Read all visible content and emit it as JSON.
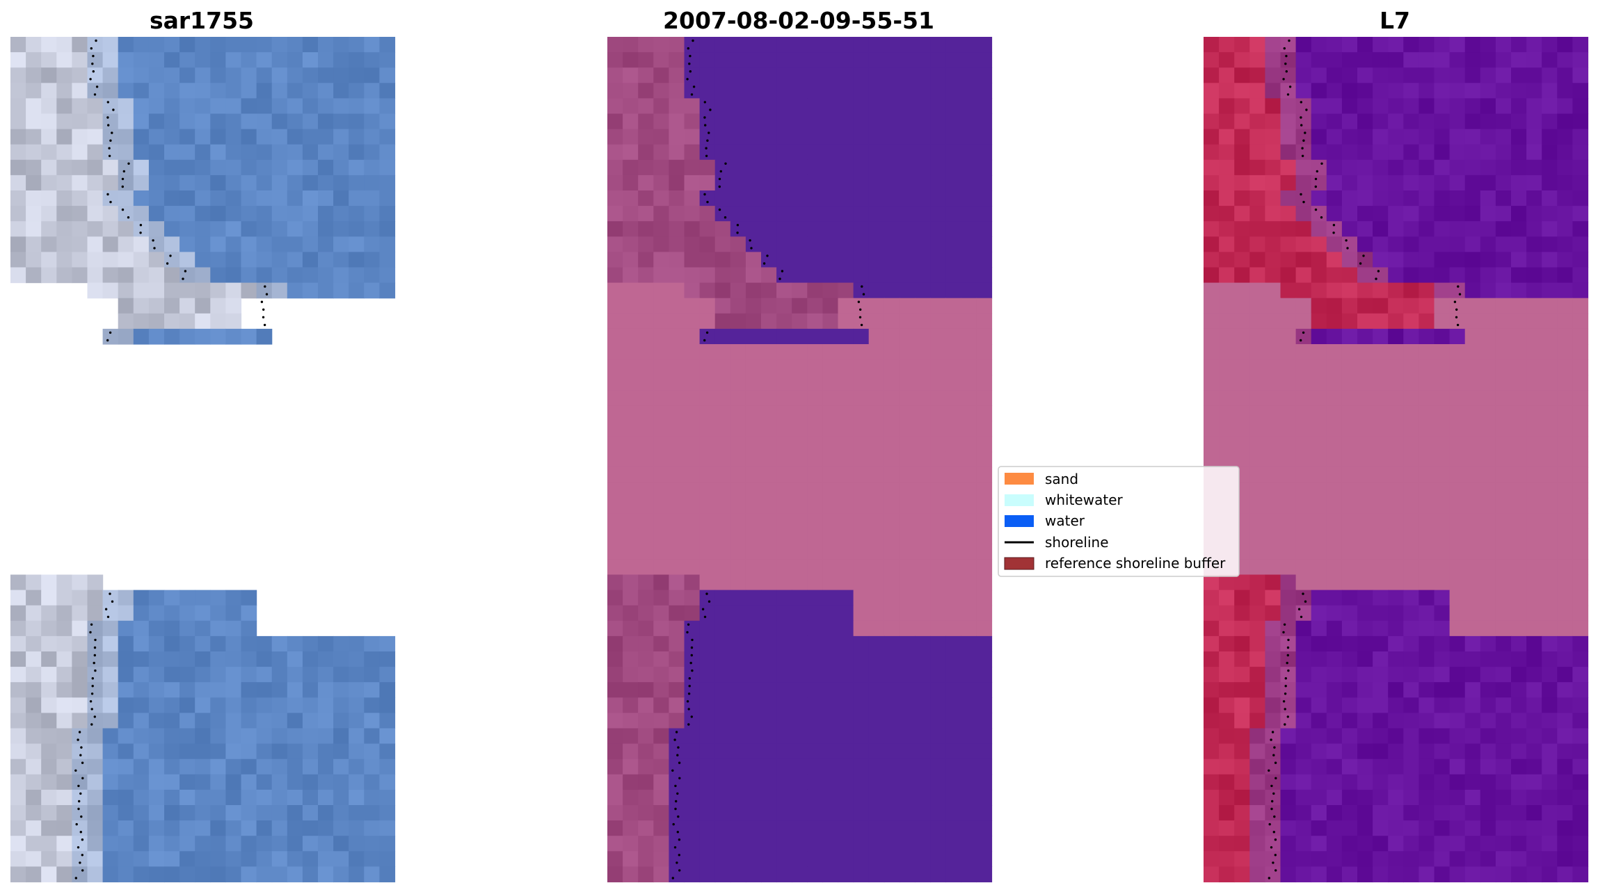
{
  "figure": {
    "panels": [
      {
        "id": "rgb",
        "title": "sar1755",
        "colormap": "rgb"
      },
      {
        "id": "classified",
        "title": "2007-08-02-09-55-51",
        "colormap": "class"
      },
      {
        "id": "index",
        "title": "L7",
        "colormap": "index"
      }
    ],
    "legend": {
      "entries": [
        {
          "label": "sand",
          "color": "#fd8b42",
          "kind": "patch"
        },
        {
          "label": "whitewater",
          "color": "#c9fdfd",
          "kind": "patch"
        },
        {
          "label": "water",
          "color": "#0a5ef5",
          "kind": "patch"
        },
        {
          "label": "shoreline",
          "color": "#000000",
          "kind": "line"
        },
        {
          "label": "reference shoreline buffer",
          "color": "#a13336",
          "kind": "patch"
        }
      ]
    },
    "colors": {
      "nodata_mask": "#bf6793",
      "classified_water": "#55239a",
      "classified_land": "#a04a80",
      "index_land": "#c22a55",
      "index_water": "#66129e",
      "rgb_water": "#5c86c4",
      "rgb_land": "#c2c6d6"
    }
  }
}
